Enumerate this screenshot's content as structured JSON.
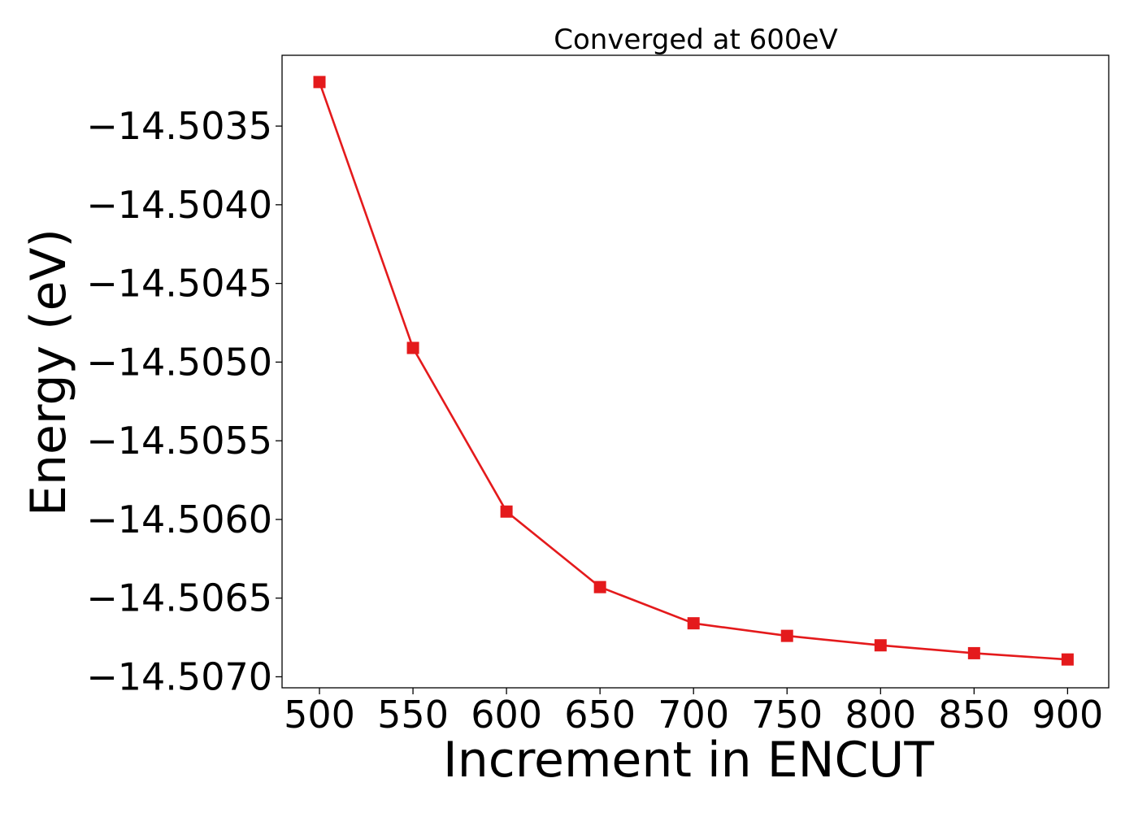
{
  "chart_data": {
    "type": "line",
    "title": "Converged at 600eV",
    "xlabel": "Increment in ENCUT",
    "ylabel": "Energy (eV)",
    "xlim": [
      480,
      922
    ],
    "ylim": [
      -14.50707,
      -14.50305
    ],
    "x_ticks": [
      500,
      550,
      600,
      650,
      700,
      750,
      800,
      850,
      900
    ],
    "x_tick_labels": [
      "500",
      "550",
      "600",
      "650",
      "700",
      "750",
      "800",
      "850",
      "900"
    ],
    "y_ticks": [
      -14.5035,
      -14.504,
      -14.5045,
      -14.505,
      -14.5055,
      -14.506,
      -14.5065,
      -14.507
    ],
    "y_tick_labels": [
      "−14.5035",
      "−14.5040",
      "−14.5045",
      "−14.5050",
      "−14.5055",
      "−14.5060",
      "−14.5065",
      "−14.5070"
    ],
    "grid": false,
    "legend": "none",
    "series": [
      {
        "color": "#e41a1c",
        "marker": "square",
        "x": [
          500,
          550,
          600,
          650,
          700,
          750,
          800,
          850,
          900
        ],
        "y": [
          -14.50322,
          -14.50491,
          -14.50595,
          -14.50643,
          -14.50666,
          -14.50674,
          -14.5068,
          -14.50685,
          -14.50689
        ]
      }
    ]
  }
}
